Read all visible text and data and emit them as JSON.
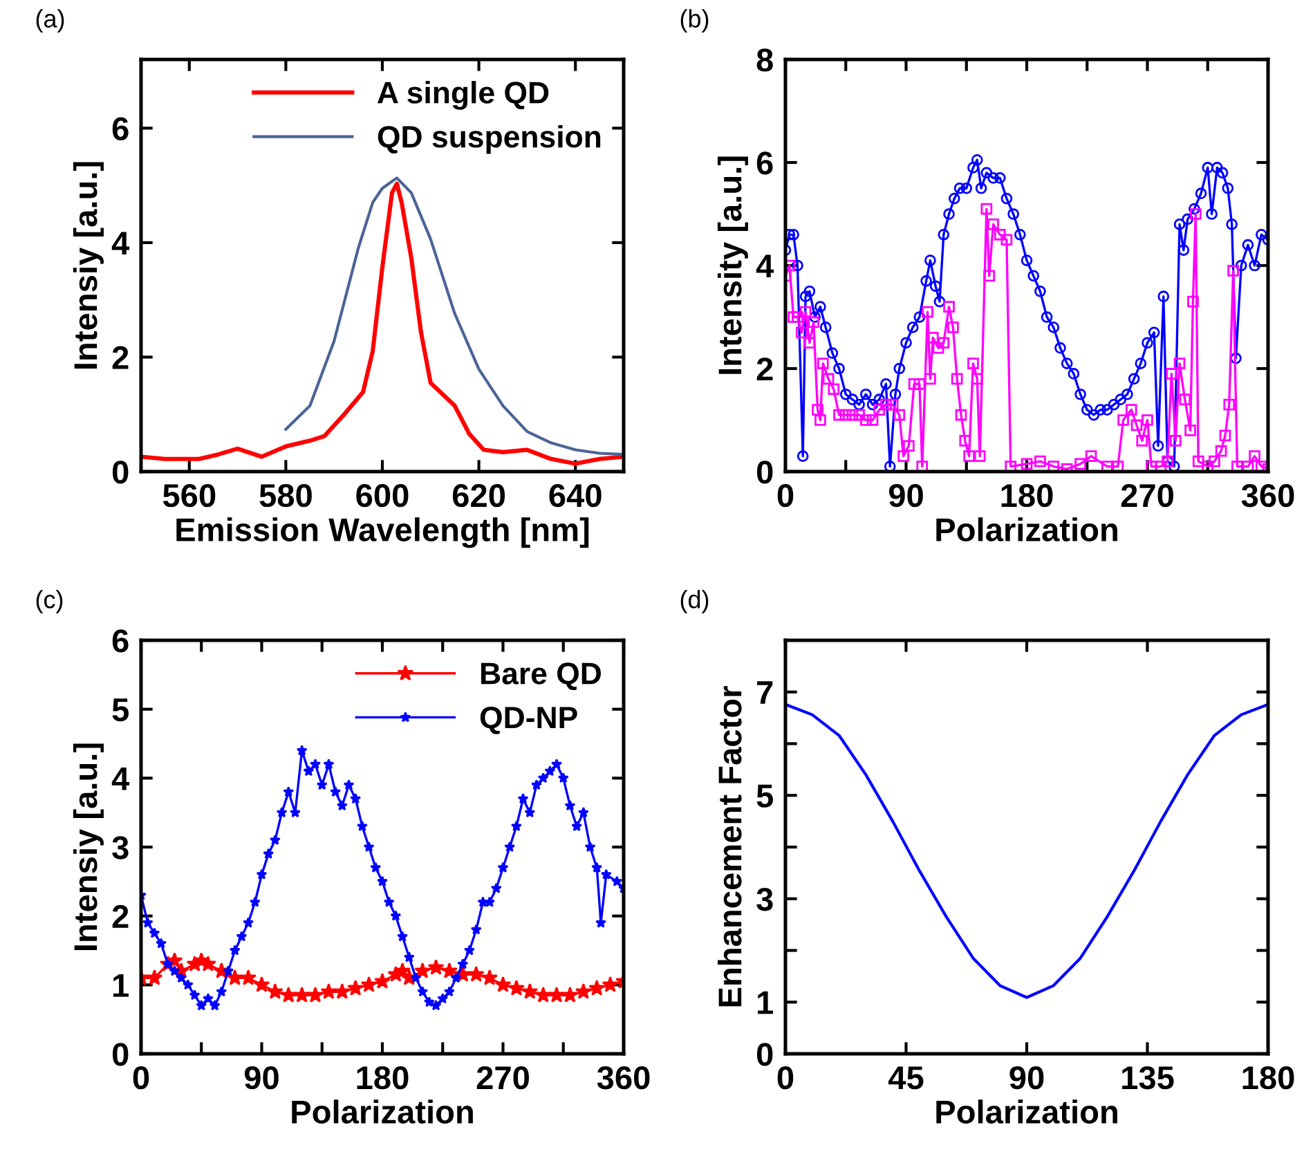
{
  "chart_data": [
    {
      "type": "line",
      "title": "(a)",
      "xlabel": "Emission Wavelength [nm]",
      "ylabel": "Intensiy [a.u.]",
      "xlim": [
        550,
        650
      ],
      "ylim": [
        0,
        7.2
      ],
      "xticks": [
        560,
        580,
        600,
        620,
        640
      ],
      "yticks": [
        0,
        2,
        4,
        6
      ],
      "legend": "top right",
      "series": [
        {
          "name": "A single QD",
          "color": "#ff0000",
          "x": [
            550,
            555,
            562,
            566,
            570,
            575,
            580,
            585,
            588,
            592,
            596,
            598,
            600,
            602,
            603,
            604,
            606,
            608,
            610,
            613,
            615,
            618,
            621,
            625,
            630,
            635,
            640,
            645,
            650
          ],
          "values": [
            0.26,
            0.22,
            0.22,
            0.3,
            0.4,
            0.26,
            0.44,
            0.54,
            0.62,
            0.99,
            1.39,
            2.1,
            3.57,
            4.87,
            5.03,
            4.7,
            3.73,
            2.44,
            1.55,
            1.31,
            1.15,
            0.66,
            0.38,
            0.34,
            0.38,
            0.22,
            0.14,
            0.22,
            0.26
          ]
        },
        {
          "name": "QD suspension",
          "color": "#4a6496",
          "x": [
            580,
            585,
            590,
            595,
            598,
            600,
            603,
            606,
            610,
            615,
            620,
            625,
            630,
            635,
            640,
            645,
            650
          ],
          "values": [
            0.74,
            1.15,
            2.28,
            3.9,
            4.7,
            4.95,
            5.13,
            4.87,
            4.06,
            2.76,
            1.79,
            1.15,
            0.7,
            0.5,
            0.38,
            0.32,
            0.3
          ]
        }
      ]
    },
    {
      "type": "line",
      "title": "(b)",
      "xlabel": "Polarization",
      "ylabel": "Intensity [a.u.]",
      "xlim": [
        0,
        360
      ],
      "ylim": [
        0,
        8
      ],
      "xticks": [
        0,
        {
          "value": 45,
          "label": null
        },
        90,
        {
          "value": 135,
          "label": null
        },
        180,
        {
          "value": 225,
          "label": null
        },
        270,
        {
          "value": 315,
          "label": null
        },
        360
      ],
      "yticks": [
        0,
        2,
        4,
        6,
        8
      ],
      "series": [
        {
          "color": "#0000ff",
          "marker": "circle",
          "x": [
            0,
            3,
            6,
            9,
            13,
            15,
            18,
            22,
            26,
            30,
            35,
            40,
            45,
            50,
            55,
            60,
            65,
            70,
            75,
            78,
            82,
            85,
            90,
            95,
            100,
            105,
            108,
            112,
            115,
            118,
            122,
            126,
            130,
            135,
            140,
            143,
            146,
            150,
            155,
            160,
            165,
            170,
            175,
            180,
            185,
            190,
            195,
            200,
            205,
            210,
            215,
            220,
            225,
            230,
            235,
            240,
            245,
            250,
            255,
            260,
            265,
            270,
            275,
            278,
            282,
            285,
            290,
            294,
            297,
            300,
            305,
            310,
            315,
            318,
            322,
            326,
            330,
            333,
            336,
            340,
            345,
            350,
            355,
            360
          ],
          "values": [
            4.3,
            4.6,
            4.6,
            4.0,
            0.3,
            3.4,
            3.5,
            3.0,
            3.2,
            2.8,
            2.3,
            2.0,
            1.5,
            1.4,
            1.3,
            1.5,
            1.3,
            1.4,
            1.7,
            0.1,
            1.5,
            2.0,
            2.5,
            2.8,
            3.0,
            3.7,
            4.1,
            3.6,
            3.3,
            4.6,
            5.0,
            5.3,
            5.5,
            5.5,
            5.9,
            6.05,
            5.5,
            5.8,
            5.7,
            5.7,
            5.3,
            5.0,
            4.6,
            4.1,
            3.8,
            3.5,
            3.0,
            2.8,
            2.4,
            2.1,
            1.9,
            1.5,
            1.2,
            1.1,
            1.2,
            1.2,
            1.3,
            1.4,
            1.5,
            1.8,
            2.1,
            2.5,
            2.7,
            0.5,
            3.4,
            0.2,
            0.1,
            4.8,
            4.3,
            4.9,
            5.1,
            5.4,
            5.9,
            5.0,
            5.9,
            5.8,
            5.5,
            4.8,
            2.2,
            4.0,
            4.4,
            4.0,
            4.6,
            4.5
          ]
        },
        {
          "color": "#ff00ff",
          "marker": "square",
          "x": [
            0,
            3,
            6,
            9,
            12,
            15,
            18,
            21,
            24,
            26,
            28,
            32,
            36,
            40,
            45,
            50,
            55,
            60,
            65,
            70,
            75,
            80,
            85,
            88,
            92,
            96,
            100,
            102,
            106,
            108,
            110,
            114,
            118,
            122,
            125,
            128,
            131,
            134,
            137,
            140,
            143,
            145,
            150,
            152,
            155,
            160,
            165,
            168,
            180,
            190,
            200,
            210,
            220,
            228,
            240,
            248,
            252,
            258,
            262,
            266,
            270,
            273,
            280,
            285,
            288,
            291,
            294,
            298,
            302,
            304,
            306,
            308,
            315,
            320,
            325,
            328,
            331,
            334,
            337,
            345,
            350,
            355,
            360
          ],
          "values": [
            3.8,
            4.0,
            3.0,
            3.0,
            2.7,
            3.1,
            2.5,
            2.9,
            1.2,
            1.0,
            2.1,
            1.8,
            1.6,
            1.1,
            1.1,
            1.1,
            1.1,
            1.0,
            1.0,
            1.2,
            1.3,
            1.3,
            1.1,
            0.3,
            0.5,
            1.7,
            1.7,
            0.1,
            3.1,
            1.8,
            2.6,
            2.4,
            2.5,
            3.2,
            2.8,
            1.8,
            1.1,
            0.6,
            0.3,
            2.1,
            1.8,
            0.3,
            5.1,
            3.8,
            4.8,
            4.6,
            4.5,
            0.1,
            0.15,
            0.2,
            0.1,
            0.05,
            0.15,
            0.3,
            0.1,
            0.1,
            1.0,
            1.2,
            0.9,
            0.6,
            1.0,
            0.1,
            0.1,
            0.2,
            1.9,
            0.6,
            2.1,
            1.4,
            0.8,
            3.3,
            5.0,
            0.2,
            0.1,
            0.2,
            0.4,
            0.7,
            1.3,
            3.9,
            0.1,
            0.1,
            0.3,
            0.1,
            0.05
          ]
        }
      ]
    },
    {
      "type": "line",
      "title": "(c)",
      "xlabel": "Polarization",
      "ylabel": "Intensiy [a.u.]",
      "xlim": [
        0,
        360
      ],
      "ylim": [
        0,
        6
      ],
      "xticks": [
        0,
        {
          "value": 45,
          "label": null
        },
        90,
        {
          "value": 135,
          "label": null
        },
        180,
        {
          "value": 225,
          "label": null
        },
        270,
        {
          "value": 315,
          "label": null
        },
        360
      ],
      "yticks": [
        0,
        1,
        2,
        3,
        4,
        5,
        6
      ],
      "legend": "top right",
      "series": [
        {
          "name": "Bare QD",
          "color": "#ff0000",
          "marker": "star",
          "x": [
            0,
            10,
            20,
            25,
            30,
            40,
            45,
            50,
            60,
            70,
            80,
            90,
            100,
            110,
            120,
            130,
            140,
            150,
            160,
            170,
            180,
            190,
            195,
            200,
            210,
            220,
            230,
            240,
            250,
            260,
            270,
            280,
            290,
            300,
            310,
            320,
            330,
            340,
            350,
            360
          ],
          "values": [
            1.1,
            1.1,
            1.3,
            1.35,
            1.2,
            1.3,
            1.35,
            1.3,
            1.2,
            1.1,
            1.1,
            1.0,
            0.9,
            0.85,
            0.85,
            0.85,
            0.9,
            0.9,
            0.95,
            1.0,
            1.05,
            1.15,
            1.2,
            1.1,
            1.2,
            1.25,
            1.2,
            1.15,
            1.15,
            1.1,
            1.0,
            0.95,
            0.9,
            0.85,
            0.85,
            0.85,
            0.9,
            0.95,
            1.0,
            1.05
          ]
        },
        {
          "name": "QD-NP",
          "color": "#0000ff",
          "marker": "star",
          "x": [
            0,
            5,
            10,
            15,
            20,
            25,
            30,
            35,
            40,
            45,
            50,
            55,
            60,
            65,
            70,
            75,
            80,
            85,
            90,
            95,
            100,
            105,
            110,
            115,
            120,
            125,
            130,
            135,
            140,
            145,
            150,
            155,
            160,
            165,
            170,
            175,
            180,
            185,
            190,
            195,
            200,
            205,
            210,
            215,
            220,
            225,
            230,
            235,
            240,
            245,
            250,
            255,
            260,
            265,
            270,
            275,
            280,
            285,
            290,
            295,
            300,
            305,
            310,
            315,
            320,
            325,
            330,
            335,
            340,
            343,
            347,
            355,
            360
          ],
          "values": [
            2.3,
            1.9,
            1.75,
            1.6,
            1.3,
            1.2,
            1.1,
            1.0,
            0.85,
            0.7,
            0.8,
            0.7,
            0.9,
            1.2,
            1.5,
            1.7,
            1.9,
            2.2,
            2.6,
            2.9,
            3.1,
            3.5,
            3.8,
            3.5,
            4.4,
            4.1,
            4.2,
            3.9,
            4.2,
            3.8,
            3.6,
            3.9,
            3.7,
            3.3,
            3.0,
            2.7,
            2.5,
            2.2,
            2.0,
            1.7,
            1.4,
            1.1,
            0.9,
            0.75,
            0.7,
            0.8,
            0.9,
            1.1,
            1.3,
            1.5,
            1.8,
            2.2,
            2.2,
            2.4,
            2.7,
            3.0,
            3.3,
            3.7,
            3.5,
            3.9,
            4.0,
            4.1,
            4.2,
            4.0,
            3.6,
            3.3,
            3.5,
            3.0,
            2.7,
            1.9,
            2.6,
            2.5,
            2.4
          ]
        }
      ]
    },
    {
      "type": "line",
      "title": "(d)",
      "xlabel": "Polarization",
      "ylabel": "Enhancement Factor",
      "xlim": [
        0,
        180
      ],
      "ylim": [
        0,
        8
      ],
      "xticks": [
        0,
        45,
        90,
        135,
        180
      ],
      "yticks": [
        0,
        1,
        {
          "value": 2,
          "label": null
        },
        3,
        {
          "value": 4,
          "label": null
        },
        5,
        {
          "value": 6,
          "label": null
        },
        7
      ],
      "series": [
        {
          "color": "#0000ff",
          "x": [
            0,
            10,
            20,
            30,
            40,
            50,
            60,
            70,
            80,
            90,
            100,
            110,
            120,
            130,
            140,
            150,
            160,
            170,
            180
          ],
          "values": [
            6.76,
            6.56,
            6.16,
            5.4,
            4.5,
            3.54,
            2.65,
            1.85,
            1.32,
            1.09,
            1.32,
            1.85,
            2.65,
            3.54,
            4.5,
            5.4,
            6.16,
            6.56,
            6.76
          ]
        }
      ]
    }
  ]
}
